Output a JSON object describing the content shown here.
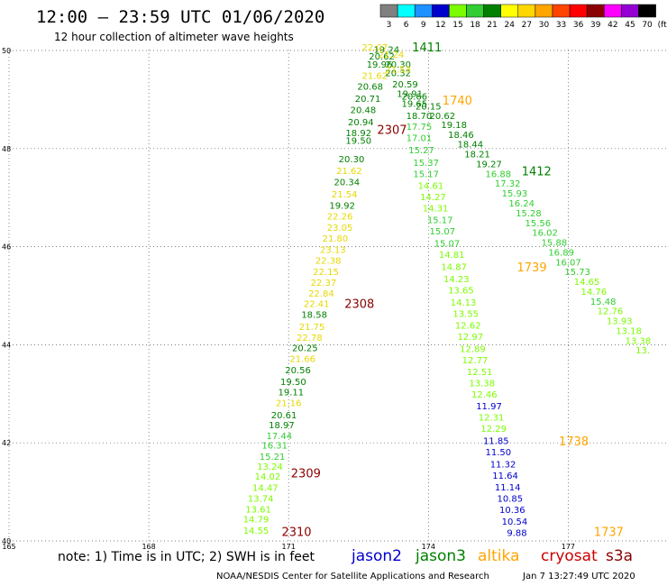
{
  "header": {
    "title": "12:00 – 23:59 UTC 01/06/2020",
    "subtitle": "12 hour collection of altimeter wave heights"
  },
  "colorbar": {
    "unit": "(ft)",
    "bins": [
      {
        "label": "3",
        "color": "#808080"
      },
      {
        "label": "6",
        "color": "#00ffff"
      },
      {
        "label": "9",
        "color": "#1e90ff"
      },
      {
        "label": "12",
        "color": "#0000cd"
      },
      {
        "label": "15",
        "color": "#7cfc00"
      },
      {
        "label": "18",
        "color": "#32cd32"
      },
      {
        "label": "21",
        "color": "#008000"
      },
      {
        "label": "24",
        "color": "#ffff00"
      },
      {
        "label": "27",
        "color": "#ffd700"
      },
      {
        "label": "30",
        "color": "#ffa500"
      },
      {
        "label": "33",
        "color": "#ff4500"
      },
      {
        "label": "36",
        "color": "#ff0000"
      },
      {
        "label": "39",
        "color": "#8b0000"
      },
      {
        "label": "42",
        "color": "#ff00ff"
      },
      {
        "label": "45",
        "color": "#9400d3"
      },
      {
        "label": "70",
        "color": "#000000"
      }
    ]
  },
  "axes": {
    "lon_ticks": [
      "165",
      "168",
      "171",
      "174",
      "177"
    ],
    "lat_ticks": [
      "40",
      "42",
      "44",
      "46",
      "48",
      "50"
    ],
    "lon_range": [
      165,
      180
    ],
    "lat_range": [
      40,
      50
    ]
  },
  "tracks": [
    {
      "name": "track-west",
      "points": [
        {
          "lon": 170.3,
          "lat": 40.15,
          "v": "14.55"
        },
        {
          "lon": 170.3,
          "lat": 40.38,
          "v": "14.79"
        },
        {
          "lon": 170.35,
          "lat": 40.58,
          "v": "13.61"
        },
        {
          "lon": 170.4,
          "lat": 40.8,
          "v": "13.74"
        },
        {
          "lon": 170.5,
          "lat": 41.02,
          "v": "14.47"
        },
        {
          "lon": 170.55,
          "lat": 41.25,
          "v": "14.02"
        },
        {
          "lon": 170.6,
          "lat": 41.45,
          "v": "13.24"
        },
        {
          "lon": 170.65,
          "lat": 41.65,
          "v": "15.21"
        },
        {
          "lon": 170.7,
          "lat": 41.88,
          "v": "16.31"
        },
        {
          "lon": 170.8,
          "lat": 42.08,
          "v": "17.44"
        },
        {
          "lon": 170.85,
          "lat": 42.3,
          "v": "18.97"
        },
        {
          "lon": 170.9,
          "lat": 42.5,
          "v": "20.61"
        },
        {
          "lon": 171.0,
          "lat": 42.75,
          "v": "21.16"
        },
        {
          "lon": 171.05,
          "lat": 42.97,
          "v": "19.11"
        },
        {
          "lon": 171.1,
          "lat": 43.18,
          "v": "19.50"
        },
        {
          "lon": 171.2,
          "lat": 43.42,
          "v": "20.56"
        },
        {
          "lon": 171.3,
          "lat": 43.65,
          "v": "21.66"
        },
        {
          "lon": 171.35,
          "lat": 43.87,
          "v": "20.25"
        },
        {
          "lon": 171.45,
          "lat": 44.08,
          "v": "22.78"
        },
        {
          "lon": 171.5,
          "lat": 44.3,
          "v": "21.75"
        },
        {
          "lon": 171.55,
          "lat": 44.55,
          "v": "18.58"
        },
        {
          "lon": 171.6,
          "lat": 44.77,
          "v": "22.41"
        },
        {
          "lon": 171.7,
          "lat": 44.98,
          "v": "22.84"
        },
        {
          "lon": 171.75,
          "lat": 45.2,
          "v": "22.37"
        },
        {
          "lon": 171.8,
          "lat": 45.42,
          "v": "22.15"
        },
        {
          "lon": 171.85,
          "lat": 45.65,
          "v": "22.38"
        },
        {
          "lon": 171.95,
          "lat": 45.87,
          "v": "23.13"
        },
        {
          "lon": 172.0,
          "lat": 46.1,
          "v": "21.80"
        },
        {
          "lon": 172.1,
          "lat": 46.32,
          "v": "23.05"
        },
        {
          "lon": 172.1,
          "lat": 46.55,
          "v": "22.26"
        },
        {
          "lon": 172.15,
          "lat": 46.77,
          "v": "19.92"
        },
        {
          "lon": 172.2,
          "lat": 47.0,
          "v": "21.54"
        },
        {
          "lon": 172.25,
          "lat": 47.25,
          "v": "20.34"
        },
        {
          "lon": 172.3,
          "lat": 47.48,
          "v": "21.62"
        },
        {
          "lon": 172.35,
          "lat": 47.72,
          "v": "20.30"
        },
        {
          "lon": 172.5,
          "lat": 48.1,
          "v": "19.50"
        },
        {
          "lon": 172.5,
          "lat": 48.25,
          "v": "18.92"
        },
        {
          "lon": 172.55,
          "lat": 48.47,
          "v": "20.94"
        },
        {
          "lon": 172.6,
          "lat": 48.72,
          "v": "20.48"
        },
        {
          "lon": 172.7,
          "lat": 48.95,
          "v": "20.71"
        },
        {
          "lon": 172.75,
          "lat": 49.2,
          "v": "20.68"
        },
        {
          "lon": 172.85,
          "lat": 49.42,
          "v": "21.62"
        },
        {
          "lon": 172.95,
          "lat": 49.65,
          "v": "19.96"
        },
        {
          "lon": 173.0,
          "lat": 49.82,
          "v": "20.62"
        },
        {
          "lon": 173.1,
          "lat": 49.95,
          "v": "19.24"
        },
        {
          "lon": 172.85,
          "lat": 50.0,
          "v": "22.07"
        }
      ]
    },
    {
      "name": "track-middle",
      "points": [
        {
          "lon": 173.35,
          "lat": 49.65,
          "v": "20.30"
        },
        {
          "lon": 173.35,
          "lat": 49.48,
          "v": "20.32"
        },
        {
          "lon": 173.5,
          "lat": 49.25,
          "v": "20.59"
        },
        {
          "lon": 173.6,
          "lat": 49.05,
          "v": "19.91"
        },
        {
          "lon": 173.7,
          "lat": 48.85,
          "v": "19.65"
        },
        {
          "lon": 173.8,
          "lat": 48.6,
          "v": "18.70"
        },
        {
          "lon": 173.8,
          "lat": 48.38,
          "v": "17.75"
        },
        {
          "lon": 173.8,
          "lat": 48.15,
          "v": "17.01"
        },
        {
          "lon": 173.85,
          "lat": 47.9,
          "v": "15.27"
        },
        {
          "lon": 173.95,
          "lat": 47.65,
          "v": "15.37"
        },
        {
          "lon": 173.95,
          "lat": 47.42,
          "v": "15.17"
        },
        {
          "lon": 174.05,
          "lat": 47.18,
          "v": "14.61"
        },
        {
          "lon": 174.1,
          "lat": 46.95,
          "v": "14.27"
        },
        {
          "lon": 174.15,
          "lat": 46.72,
          "v": "14.31"
        },
        {
          "lon": 174.25,
          "lat": 46.48,
          "v": "15.17"
        },
        {
          "lon": 174.3,
          "lat": 46.25,
          "v": "15.07"
        },
        {
          "lon": 174.4,
          "lat": 46.0,
          "v": "15.07"
        },
        {
          "lon": 174.5,
          "lat": 45.77,
          "v": "14.81"
        },
        {
          "lon": 174.55,
          "lat": 45.52,
          "v": "14.87"
        },
        {
          "lon": 174.6,
          "lat": 45.28,
          "v": "14.23"
        },
        {
          "lon": 174.7,
          "lat": 45.05,
          "v": "13.65"
        },
        {
          "lon": 174.75,
          "lat": 44.8,
          "v": "14.13"
        },
        {
          "lon": 174.8,
          "lat": 44.57,
          "v": "13.55"
        },
        {
          "lon": 174.85,
          "lat": 44.33,
          "v": "12.62"
        },
        {
          "lon": 174.9,
          "lat": 44.1,
          "v": "12.97"
        },
        {
          "lon": 174.95,
          "lat": 43.85,
          "v": "12.89"
        },
        {
          "lon": 175.0,
          "lat": 43.62,
          "v": "12.77"
        },
        {
          "lon": 175.1,
          "lat": 43.38,
          "v": "12.51"
        },
        {
          "lon": 175.15,
          "lat": 43.15,
          "v": "13.38"
        },
        {
          "lon": 175.2,
          "lat": 42.92,
          "v": "12.46"
        },
        {
          "lon": 175.3,
          "lat": 42.68,
          "v": "11.97"
        },
        {
          "lon": 175.35,
          "lat": 42.45,
          "v": "12.31"
        },
        {
          "lon": 175.4,
          "lat": 42.22,
          "v": "12.29"
        },
        {
          "lon": 175.45,
          "lat": 41.98,
          "v": "11.85"
        },
        {
          "lon": 175.5,
          "lat": 41.75,
          "v": "11.50"
        },
        {
          "lon": 175.6,
          "lat": 41.5,
          "v": "11.32"
        },
        {
          "lon": 175.65,
          "lat": 41.27,
          "v": "11.64"
        },
        {
          "lon": 175.7,
          "lat": 41.03,
          "v": "11.14"
        },
        {
          "lon": 175.75,
          "lat": 40.8,
          "v": "10.85"
        },
        {
          "lon": 175.8,
          "lat": 40.57,
          "v": "10.36"
        },
        {
          "lon": 175.85,
          "lat": 40.33,
          "v": "10.54"
        },
        {
          "lon": 175.9,
          "lat": 40.1,
          "v": "9.88"
        }
      ]
    },
    {
      "name": "track-east",
      "points": [
        {
          "lon": 173.2,
          "lat": 49.85,
          "v": "21.24"
        },
        {
          "lon": 173.35,
          "lat": 49.55,
          "v": "21.53"
        },
        {
          "lon": 173.7,
          "lat": 49.0,
          "v": "20.66"
        },
        {
          "lon": 174.0,
          "lat": 48.8,
          "v": "20.15"
        },
        {
          "lon": 174.3,
          "lat": 48.6,
          "v": "20.62"
        },
        {
          "lon": 174.55,
          "lat": 48.42,
          "v": "19.18"
        },
        {
          "lon": 174.7,
          "lat": 48.22,
          "v": "18.46"
        },
        {
          "lon": 174.9,
          "lat": 48.02,
          "v": "18.44"
        },
        {
          "lon": 175.05,
          "lat": 47.82,
          "v": "18.21"
        },
        {
          "lon": 175.3,
          "lat": 47.62,
          "v": "19.27"
        },
        {
          "lon": 175.5,
          "lat": 47.42,
          "v": "16.88"
        },
        {
          "lon": 175.7,
          "lat": 47.22,
          "v": "17.32"
        },
        {
          "lon": 175.85,
          "lat": 47.02,
          "v": "15.93"
        },
        {
          "lon": 176.0,
          "lat": 46.82,
          "v": "16.24"
        },
        {
          "lon": 176.15,
          "lat": 46.62,
          "v": "15.28"
        },
        {
          "lon": 176.35,
          "lat": 46.42,
          "v": "15.56"
        },
        {
          "lon": 176.5,
          "lat": 46.22,
          "v": "16.02"
        },
        {
          "lon": 176.7,
          "lat": 46.02,
          "v": "15.88"
        },
        {
          "lon": 176.85,
          "lat": 45.82,
          "v": "16.89"
        },
        {
          "lon": 177.0,
          "lat": 45.62,
          "v": "16.07"
        },
        {
          "lon": 177.2,
          "lat": 45.42,
          "v": "15.73"
        },
        {
          "lon": 177.4,
          "lat": 45.22,
          "v": "14.65"
        },
        {
          "lon": 177.55,
          "lat": 45.02,
          "v": "14.76"
        },
        {
          "lon": 177.75,
          "lat": 44.82,
          "v": "15.48"
        },
        {
          "lon": 177.9,
          "lat": 44.62,
          "v": "12.76"
        },
        {
          "lon": 178.1,
          "lat": 44.42,
          "v": "13.93"
        },
        {
          "lon": 178.3,
          "lat": 44.22,
          "v": "13.18"
        },
        {
          "lon": 178.5,
          "lat": 44.02,
          "v": "13.38"
        },
        {
          "lon": 178.6,
          "lat": 43.82,
          "v": "13."
        }
      ]
    }
  ],
  "time_labels": [
    {
      "text": "2307",
      "lon": 172.9,
      "lat": 48.3,
      "color": "#8b0000"
    },
    {
      "text": "2308",
      "lon": 172.2,
      "lat": 44.75,
      "color": "#8b0000"
    },
    {
      "text": "2309",
      "lon": 171.05,
      "lat": 41.3,
      "color": "#8b0000"
    },
    {
      "text": "2310",
      "lon": 170.85,
      "lat": 40.1,
      "color": "#8b0000"
    },
    {
      "text": "1411",
      "lon": 173.65,
      "lat": 49.98,
      "color": "#008000"
    },
    {
      "text": "1740",
      "lon": 174.3,
      "lat": 48.9,
      "color": "#ffa500"
    },
    {
      "text": "1412",
      "lon": 176.0,
      "lat": 47.45,
      "color": "#008000"
    },
    {
      "text": "1739",
      "lon": 175.9,
      "lat": 45.5,
      "color": "#ffa500"
    },
    {
      "text": "1738",
      "lon": 176.8,
      "lat": 41.95,
      "color": "#ffa500"
    },
    {
      "text": "1737",
      "lon": 177.55,
      "lat": 40.1,
      "color": "#ffa500"
    }
  ],
  "footer": {
    "note": "note: 1) Time is in UTC; 2) SWH is in feet",
    "satellites": [
      {
        "name": "jason2",
        "color": "#0000cd"
      },
      {
        "name": "jason3",
        "color": "#008000"
      },
      {
        "name": "altika",
        "color": "#ffa500"
      },
      {
        "name": "cryosat",
        "color": "#cc0000"
      },
      {
        "name": "s3a",
        "color": "#8b0000"
      }
    ],
    "credit": "NOAA/NESDIS Center for Satellite Applications and Research",
    "generated": "Jan  7 13:27:49 UTC 2020"
  }
}
